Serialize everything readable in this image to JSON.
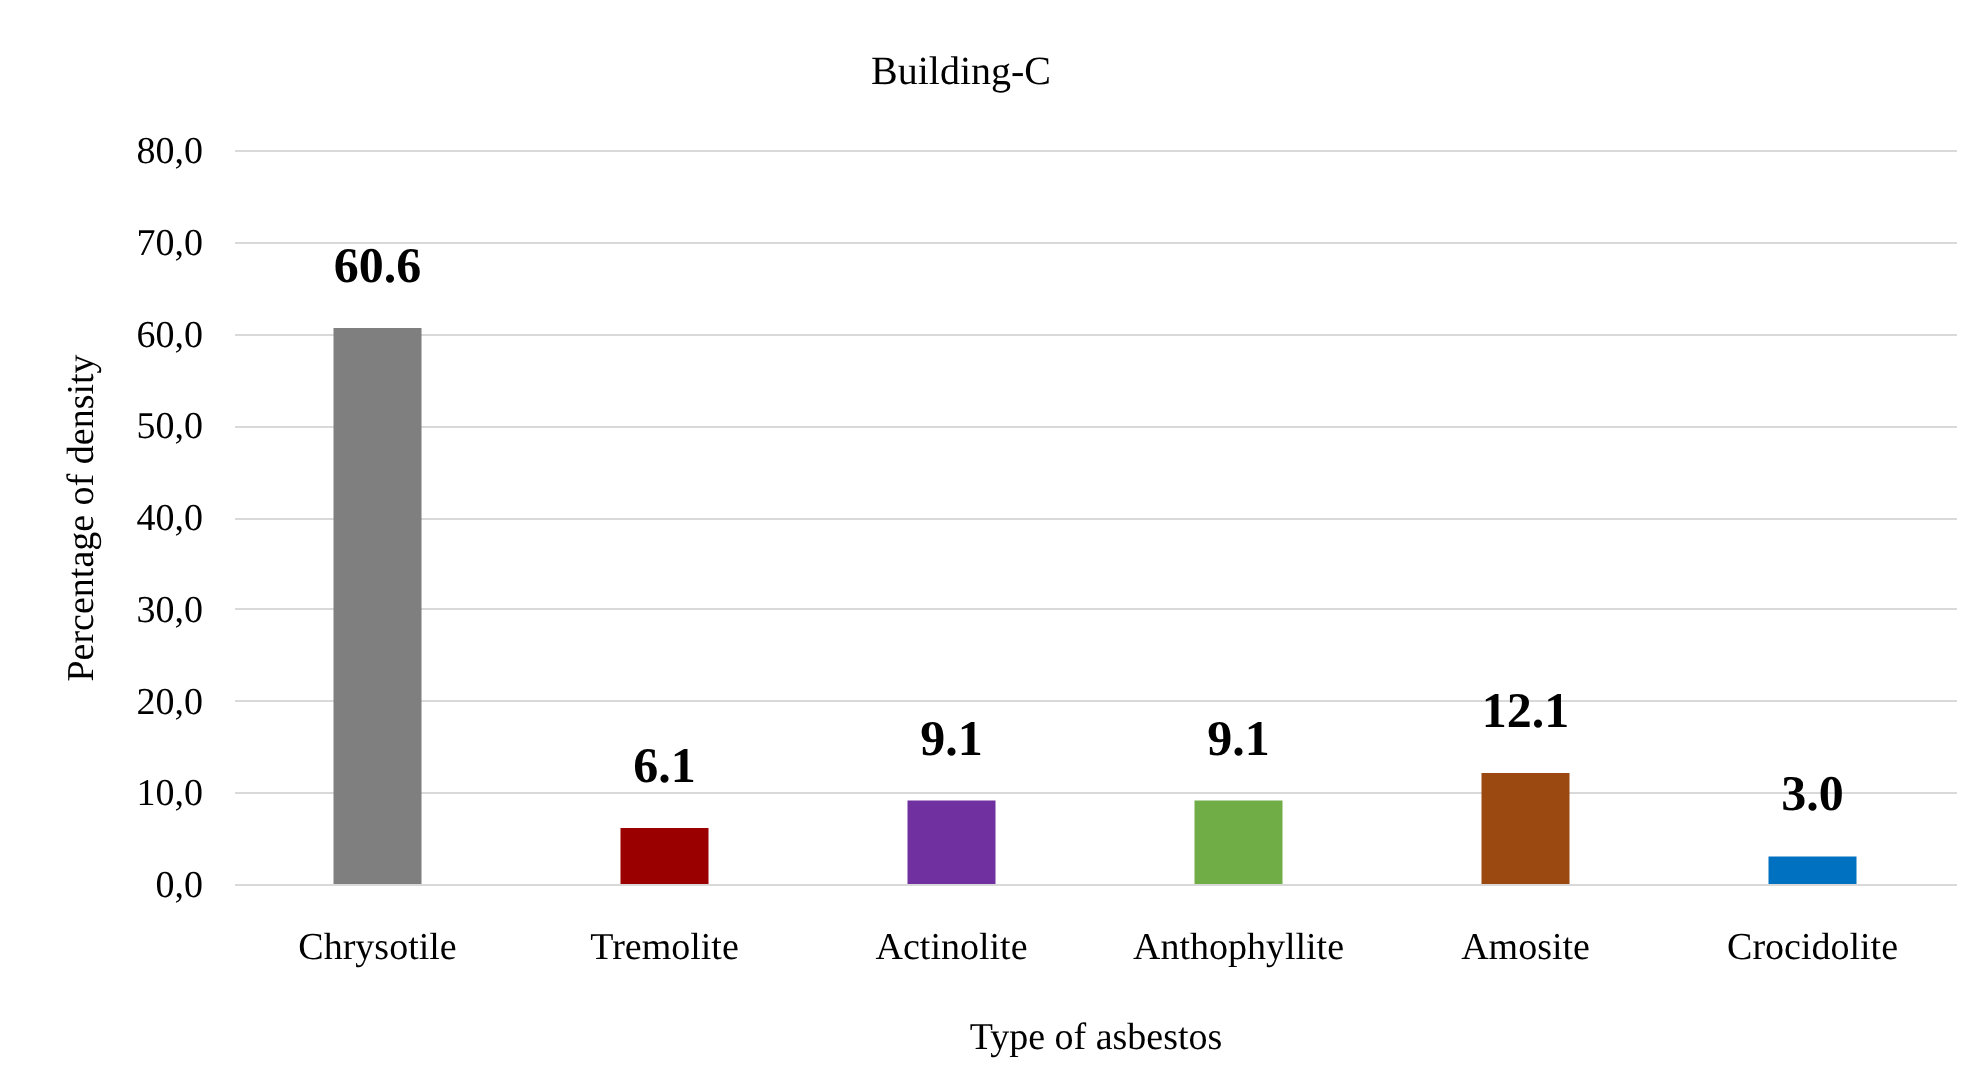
{
  "chart_data": {
    "type": "bar",
    "title": "Building-C",
    "xlabel": "Type of asbestos",
    "ylabel": "Percentage of density",
    "categories": [
      "Chrysotile",
      "Tremolite",
      "Actinolite",
      "Anthophyllite",
      "Amosite",
      "Crocidolite"
    ],
    "values": [
      60.6,
      6.1,
      9.1,
      9.1,
      12.1,
      3.0
    ],
    "colors": [
      "#7f7f7f",
      "#9b0000",
      "#7030a0",
      "#70ad47",
      "#9c4811",
      "#0070c0"
    ],
    "value_labels": [
      "60.6",
      "6.1",
      "9.1",
      "9.1",
      "12.1",
      "3.0"
    ],
    "ylim": [
      0,
      80
    ],
    "yticks": [
      {
        "value": 0,
        "label": "0,0"
      },
      {
        "value": 10,
        "label": "10,0"
      },
      {
        "value": 20,
        "label": "20,0"
      },
      {
        "value": 30,
        "label": "30,0"
      },
      {
        "value": 40,
        "label": "40,0"
      },
      {
        "value": 50,
        "label": "50,0"
      },
      {
        "value": 60,
        "label": "60,0"
      },
      {
        "value": 70,
        "label": "70,0"
      },
      {
        "value": 80,
        "label": "80,0"
      }
    ],
    "grid": "y"
  }
}
